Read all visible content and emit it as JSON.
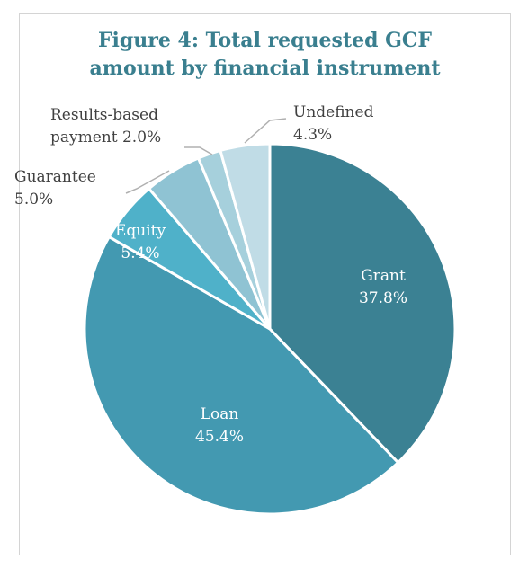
{
  "chart_data": {
    "type": "pie",
    "title_lines": [
      "Figure 4: Total requested GCF",
      "amount by financial instrument"
    ],
    "start_angle_deg": 0,
    "direction": "clockwise",
    "slices": [
      {
        "id": "grant",
        "label_lines": [
          "Grant"
        ],
        "value_label": "37.8%",
        "value": 37.8,
        "color": "#3b8193",
        "label_pos": "inside"
      },
      {
        "id": "loan",
        "label_lines": [
          "Loan"
        ],
        "value_label": "45.4%",
        "value": 45.4,
        "color": "#4399b1",
        "label_pos": "inside"
      },
      {
        "id": "equity",
        "label_lines": [
          "Equity"
        ],
        "value_label": "5.4%",
        "value": 5.4,
        "color": "#4fb1c9",
        "label_pos": "inside"
      },
      {
        "id": "guarantee",
        "label_lines": [
          "Guarantee"
        ],
        "value_label": "5.0%",
        "value": 5.0,
        "color": "#8fc3d3",
        "label_pos": "outside"
      },
      {
        "id": "results-based-payment",
        "label_lines": [
          "Results-based",
          "payment 2.0%"
        ],
        "value_label": "",
        "value": 2.0,
        "color": "#a6d0dc",
        "label_pos": "outside"
      },
      {
        "id": "undefined",
        "label_lines": [
          "Undefined"
        ],
        "value_label": "4.3%",
        "value": 4.3,
        "color": "#c0dce6",
        "label_pos": "outside"
      }
    ],
    "legend": "none"
  }
}
